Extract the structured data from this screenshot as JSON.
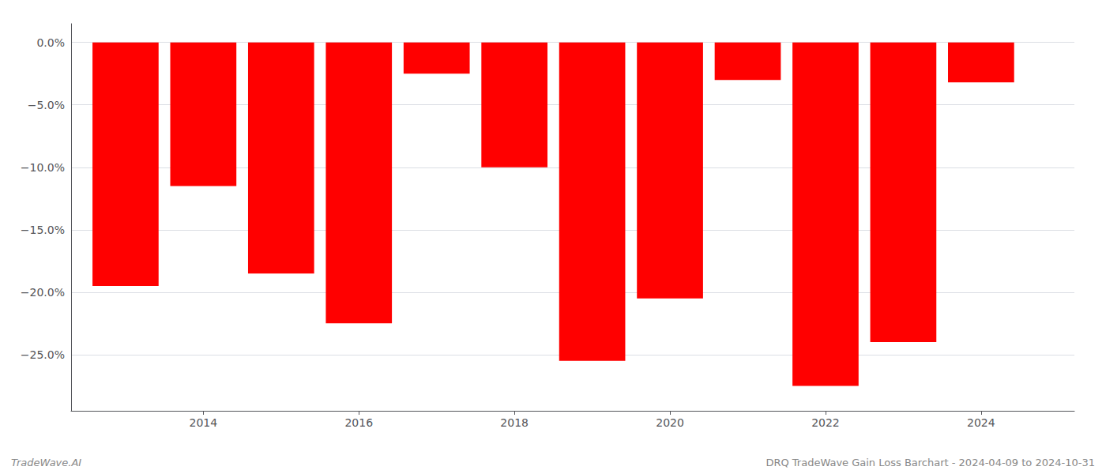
{
  "chart_data": {
    "type": "bar",
    "x": [
      2013,
      2014,
      2015,
      2016,
      2017,
      2018,
      2019,
      2020,
      2021,
      2022,
      2023,
      2024
    ],
    "values": [
      -19.5,
      -11.5,
      -18.5,
      -22.5,
      -2.5,
      -10.0,
      -25.5,
      -20.5,
      -3.0,
      -27.5,
      -24.0,
      -3.2
    ],
    "color": "#ff0000",
    "xlim": [
      2012.3,
      2025.2
    ],
    "xticks": [
      2014,
      2016,
      2018,
      2020,
      2022,
      2024
    ],
    "ylim": [
      -29.5,
      1.5
    ],
    "yticks": [
      {
        "value": 0.0,
        "label": "0.0%"
      },
      {
        "value": -5.0,
        "label": "−5.0%"
      },
      {
        "value": -10.0,
        "label": "−10.0%"
      },
      {
        "value": -15.0,
        "label": "−15.0%"
      },
      {
        "value": -20.0,
        "label": "−20.0%"
      },
      {
        "value": -25.0,
        "label": "−25.0%"
      }
    ],
    "grid": true,
    "annotations": [
      "TradeWave.AI",
      "DRQ TradeWave Gain Loss Barchart - 2024-04-09 to 2024-10-31"
    ]
  }
}
